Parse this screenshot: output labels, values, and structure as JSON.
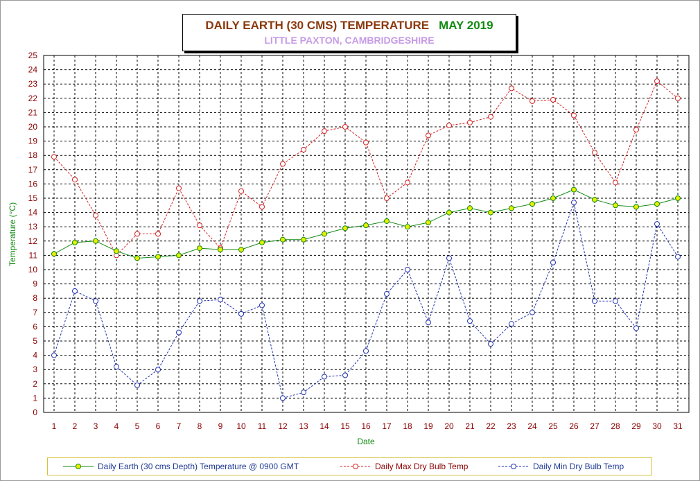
{
  "title": {
    "main": "DAILY EARTH (30 CMS) TEMPERATURE",
    "month": "MAY 2019",
    "subtitle": "LITTLE PAXTON, CAMBRIDGESHIRE"
  },
  "colors": {
    "earth_line": "#138a13",
    "earth_marker": "#e6f000",
    "max_line": "#d42020",
    "min_line": "#1f2fb0",
    "grid": "#000000",
    "tick_text": "#8b0000",
    "axis_label": "#138a13"
  },
  "chart_data": {
    "type": "line",
    "xlabel": "Date",
    "ylabel": "Temperature (°C)",
    "ylim": [
      0,
      25
    ],
    "xlim": [
      1,
      31
    ],
    "grid": true,
    "legend_position": "bottom",
    "x": [
      1,
      2,
      3,
      4,
      5,
      6,
      7,
      8,
      9,
      10,
      11,
      12,
      13,
      14,
      15,
      16,
      17,
      18,
      19,
      20,
      21,
      22,
      23,
      24,
      25,
      26,
      27,
      28,
      29,
      30,
      31
    ],
    "yticks": [
      0,
      1,
      2,
      3,
      4,
      5,
      6,
      7,
      8,
      9,
      10,
      11,
      12,
      13,
      14,
      15,
      16,
      17,
      18,
      19,
      20,
      21,
      22,
      23,
      24,
      25
    ],
    "series": [
      {
        "name": "Daily Earth (30 cms Depth) Temperature @ 0900 GMT",
        "style": "solid",
        "values": [
          11.1,
          11.9,
          12.0,
          11.3,
          10.8,
          10.9,
          11.0,
          11.5,
          11.4,
          11.4,
          11.9,
          12.1,
          12.1,
          12.5,
          12.9,
          13.1,
          13.4,
          13.0,
          13.3,
          14.0,
          14.3,
          14.0,
          14.3,
          14.6,
          15.0,
          15.6,
          14.9,
          14.5,
          14.4,
          14.6,
          15.0
        ]
      },
      {
        "name": "Daily Max Dry Bulb Temp",
        "style": "dashed",
        "values": [
          17.9,
          16.3,
          13.8,
          11.0,
          12.5,
          12.5,
          15.7,
          13.1,
          11.5,
          15.5,
          14.4,
          17.4,
          18.4,
          19.7,
          20.0,
          18.9,
          15.0,
          16.1,
          19.4,
          20.1,
          20.3,
          20.7,
          22.7,
          21.8,
          21.9,
          20.8,
          18.2,
          16.1,
          19.8,
          23.2,
          22.0
        ]
      },
      {
        "name": "Daily Min Dry Bulb Temp",
        "style": "dashed",
        "values": [
          4.0,
          8.5,
          7.8,
          3.2,
          1.9,
          3.0,
          5.6,
          7.8,
          7.9,
          6.9,
          7.5,
          1.0,
          1.4,
          2.5,
          2.6,
          4.3,
          8.3,
          10.0,
          6.3,
          10.8,
          6.4,
          4.8,
          6.2,
          7.0,
          10.5,
          14.7,
          7.8,
          7.8,
          5.9,
          13.2,
          10.9
        ]
      }
    ]
  },
  "legend": {
    "earth": "Daily Earth (30 cms Depth) Temperature @ 0900 GMT",
    "max": "Daily Max Dry Bulb Temp",
    "min": "Daily Min Dry Bulb Temp"
  }
}
